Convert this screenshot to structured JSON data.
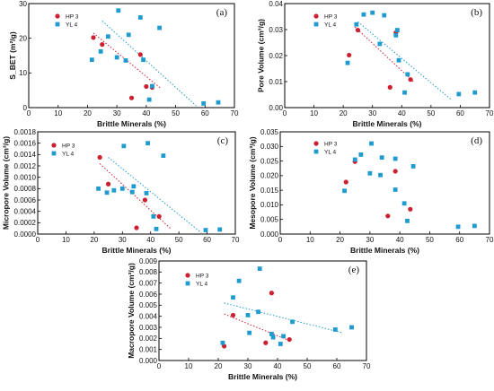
{
  "chart_data": [
    {
      "type": "scatter",
      "panel_label": "(a)",
      "xlabel": "Brittle Minerals (%)",
      "ylabel": "S_BET (m²/g)",
      "xlim": [
        0,
        70
      ],
      "ylim": [
        0,
        30
      ],
      "xticks": [
        "0",
        "10",
        "20",
        "30",
        "40",
        "50",
        "60",
        "70"
      ],
      "yticks": [
        "0",
        "10",
        "20",
        "30"
      ],
      "legend": [
        "HP 3",
        "YL 4"
      ],
      "series": [
        {
          "name": "HP 3",
          "color": "#cc1f2f",
          "marker": "circle",
          "x": [
            22,
            25,
            35,
            38,
            40,
            42
          ],
          "y": [
            20.2,
            18.2,
            2.8,
            15.3,
            6.1,
            5.8
          ]
        },
        {
          "name": "YL 4",
          "color": "#1f9bcf",
          "marker": "square",
          "x": [
            21.5,
            24.5,
            27,
            30.5,
            30,
            34,
            33,
            38,
            39,
            41,
            42,
            44.5,
            59.5,
            64.5
          ],
          "y": [
            13.8,
            16.2,
            20.5,
            28,
            14.5,
            21,
            13.6,
            26,
            13.8,
            2.3,
            6.2,
            23,
            1.2,
            1.5
          ]
        }
      ],
      "trendlines": [
        {
          "series": "HP 3",
          "from": [
            22,
            21.5
          ],
          "to": [
            45,
            5.5
          ]
        },
        {
          "series": "YL 4",
          "from": [
            25,
            25
          ],
          "to": [
            57,
            0.5
          ]
        }
      ]
    },
    {
      "type": "scatter",
      "panel_label": "(b)",
      "xlabel": "Brittle Minerals (%)",
      "ylabel": "Pore Volume (cm³/g)",
      "xlim": [
        0,
        70
      ],
      "ylim": [
        0,
        0.04
      ],
      "xticks": [
        "0",
        "10",
        "20",
        "30",
        "40",
        "50",
        "60",
        "70"
      ],
      "yticks": [
        "0.00",
        "0.01",
        "0.02",
        "0.03",
        "0.04"
      ],
      "legend": [
        "HP 3",
        "YL 4"
      ],
      "series": [
        {
          "name": "HP 3",
          "color": "#cc1f2f",
          "marker": "circle",
          "x": [
            22,
            25,
            36,
            38,
            43
          ],
          "y": [
            0.0202,
            0.0298,
            0.0078,
            0.0288,
            0.0108
          ]
        },
        {
          "name": "YL 4",
          "color": "#1f9bcf",
          "marker": "square",
          "x": [
            21.5,
            24.5,
            27,
            30,
            34,
            32.5,
            38.5,
            38,
            39,
            41,
            42,
            59.5,
            65
          ],
          "y": [
            0.0172,
            0.032,
            0.0358,
            0.0365,
            0.0355,
            0.0245,
            0.0298,
            0.0278,
            0.0182,
            0.0058,
            0.0128,
            0.0052,
            0.0058
          ]
        }
      ],
      "trendlines": [
        {
          "series": "HP 3",
          "from": [
            24,
            0.031
          ],
          "to": [
            44,
            0.01
          ]
        },
        {
          "series": "YL 4",
          "from": [
            25,
            0.033
          ],
          "to": [
            57,
            0.003
          ]
        }
      ]
    },
    {
      "type": "scatter",
      "panel_label": "(c)",
      "xlabel": "Brittle Minerals (%)",
      "ylabel": "Micropore Volume (cm³/g)",
      "xlim": [
        0,
        70
      ],
      "ylim": [
        0,
        0.0018
      ],
      "xticks": [
        "0",
        "10",
        "20",
        "30",
        "40",
        "50",
        "60",
        "70"
      ],
      "yticks": [
        "0.0000",
        "0.0002",
        "0.0004",
        "0.0006",
        "0.0008",
        "0.0010",
        "0.0012",
        "0.0014",
        "0.0016",
        "0.0018"
      ],
      "legend": [
        "HP 3",
        "YL 4"
      ],
      "series": [
        {
          "name": "HP 3",
          "color": "#cc1f2f",
          "marker": "circle",
          "x": [
            22,
            25,
            35,
            38,
            43
          ],
          "y": [
            0.00135,
            0.00088,
            0.00011,
            0.0006,
            0.00031
          ]
        },
        {
          "name": "YL 4",
          "color": "#1f9bcf",
          "marker": "square",
          "x": [
            21.5,
            24.5,
            27,
            30,
            30.5,
            34,
            33.5,
            38.5,
            39,
            41,
            42,
            44.5,
            59.5,
            64.5
          ],
          "y": [
            0.0008,
            0.00073,
            0.00077,
            0.0008,
            0.00155,
            0.00084,
            0.00074,
            0.00072,
            0.0016,
            0.00031,
            9e-05,
            0.00138,
            7e-05,
            8e-05
          ]
        }
      ],
      "trendlines": [
        {
          "series": "HP 3",
          "from": [
            22,
            0.00124
          ],
          "to": [
            47,
            0.0001
          ]
        },
        {
          "series": "YL 4",
          "from": [
            25,
            0.00135
          ],
          "to": [
            58,
            2e-05
          ]
        }
      ]
    },
    {
      "type": "scatter",
      "panel_label": "(d)",
      "xlabel": "Brittle Minerals (%)",
      "ylabel": "Mesopore Volume (cm³/g)",
      "xlim": [
        0,
        70
      ],
      "ylim": [
        0,
        0.035
      ],
      "xticks": [
        "0",
        "10",
        "20",
        "30",
        "40",
        "50",
        "60",
        "70"
      ],
      "yticks": [
        "0.000",
        "0.005",
        "0.010",
        "0.015",
        "0.020",
        "0.025",
        "0.030",
        "0.035"
      ],
      "legend": [
        "HP 3",
        "YL 4"
      ],
      "series": [
        {
          "name": "HP 3",
          "color": "#cc1f2f",
          "marker": "circle",
          "x": [
            22,
            25,
            36,
            38.5,
            43.5
          ],
          "y": [
            0.0178,
            0.0248,
            0.0062,
            0.0215,
            0.0085
          ]
        },
        {
          "name": "YL 4",
          "color": "#1f9bcf",
          "marker": "square",
          "x": [
            21.5,
            25,
            27,
            30.5,
            30,
            34,
            33.5,
            38.5,
            38.5,
            41.5,
            42.5,
            44.5,
            59.5,
            65
          ],
          "y": [
            0.0148,
            0.0255,
            0.0272,
            0.031,
            0.0208,
            0.0262,
            0.0202,
            0.0258,
            0.0152,
            0.0105,
            0.0045,
            0.0232,
            0.0025,
            0.0028
          ]
        }
      ],
      "trendlines": []
    },
    {
      "type": "scatter",
      "panel_label": "(e)",
      "xlabel": "Brittle Minerals (%)",
      "ylabel": "Macropore Volume (cm³/g)",
      "xlim": [
        0,
        70
      ],
      "ylim": [
        0,
        0.009
      ],
      "xticks": [
        "0",
        "10",
        "20",
        "30",
        "40",
        "50",
        "60",
        "70"
      ],
      "yticks": [
        "0.000",
        "0.001",
        "0.002",
        "0.003",
        "0.004",
        "0.005",
        "0.006",
        "0.007",
        "0.008",
        "0.009"
      ],
      "legend": [
        "HP 3",
        "YL 4"
      ],
      "series": [
        {
          "name": "HP 3",
          "color": "#cc1f2f",
          "marker": "circle",
          "x": [
            22,
            25,
            36,
            38,
            44
          ],
          "y": [
            0.0013,
            0.0041,
            0.0016,
            0.0061,
            0.0019
          ]
        },
        {
          "name": "YL 4",
          "color": "#1f9bcf",
          "marker": "square",
          "x": [
            21.5,
            25,
            27,
            30,
            30.5,
            34,
            33.5,
            38,
            38.5,
            41,
            42,
            45,
            59.5,
            65
          ],
          "y": [
            0.0016,
            0.0057,
            0.0072,
            0.0041,
            0.0025,
            0.0083,
            0.0044,
            0.0024,
            0.0021,
            0.0015,
            0.0022,
            0.0035,
            0.0028,
            0.003
          ]
        }
      ],
      "trendlines": [
        {
          "series": "HP 3",
          "from": [
            22,
            0.0042
          ],
          "to": [
            44,
            0.0018
          ]
        },
        {
          "series": "YL 4",
          "from": [
            22,
            0.0052
          ],
          "to": [
            62,
            0.0025
          ]
        }
      ]
    }
  ]
}
